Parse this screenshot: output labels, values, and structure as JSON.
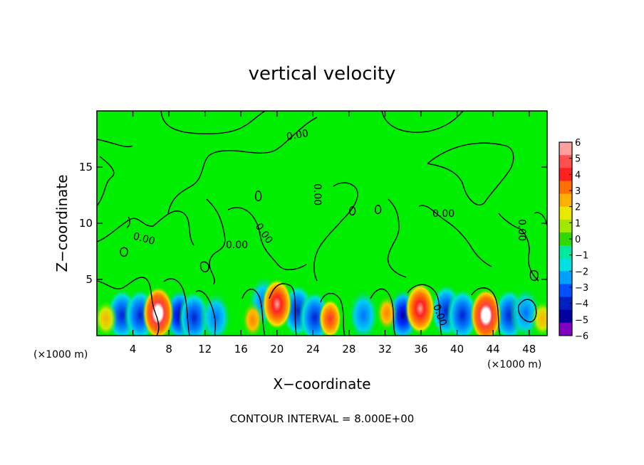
{
  "chart_data": {
    "type": "heatmap",
    "title": "vertical velocity",
    "xlabel": "X−coordinate",
    "ylabel": "Z−coordinate",
    "x_unit_left": "(×1000 m)",
    "x_unit_right": "(×1000 m)",
    "xlim": [
      0,
      50
    ],
    "ylim": [
      0,
      20
    ],
    "x_ticks": [
      4,
      8,
      12,
      16,
      20,
      24,
      28,
      32,
      36,
      40,
      44,
      48
    ],
    "y_ticks": [
      5,
      10,
      15
    ],
    "colorbar": {
      "ticks": [
        6,
        5,
        4,
        3,
        2,
        1,
        0,
        -1,
        -2,
        -3,
        -4,
        -5,
        -6
      ],
      "tick_labels": [
        "6",
        "5",
        "4",
        "3",
        "2",
        "1",
        "0",
        "−1",
        "−2",
        "−3",
        "−4",
        "−5",
        "−6"
      ],
      "colors": [
        "#ffa0a0",
        "#ff5050",
        "#ff2020",
        "#ff7000",
        "#ffb000",
        "#e8e800",
        "#a0e800",
        "#30d800",
        "#00e8a0",
        "#00e0e0",
        "#00a0ff",
        "#0050ff",
        "#0020c0",
        "#0000a0",
        "#8000c0"
      ]
    },
    "contour_label": "0.00",
    "footer": "CONTOUR INTERVAL = 8.000E+00",
    "updraft_cores": [
      {
        "x": 6.8,
        "z": 2.0,
        "peak": 6
      },
      {
        "x": 20.0,
        "z": 2.8,
        "peak": 5
      },
      {
        "x": 25.9,
        "z": 1.5,
        "peak": 4
      },
      {
        "x": 35.9,
        "z": 2.4,
        "peak": 5
      },
      {
        "x": 43.2,
        "z": 1.8,
        "peak": 6
      },
      {
        "x": 17.3,
        "z": 1.4,
        "peak": 3
      },
      {
        "x": 32.2,
        "z": 2.0,
        "peak": 3
      },
      {
        "x": 1.0,
        "z": 1.5,
        "peak": 2
      },
      {
        "x": 49.5,
        "z": 1.5,
        "peak": 2
      }
    ],
    "downdraft_cores": [
      {
        "x": 2.8,
        "z": 1.8,
        "peak": -4
      },
      {
        "x": 4.8,
        "z": 1.8,
        "peak": -4
      },
      {
        "x": 9.2,
        "z": 1.8,
        "peak": -5
      },
      {
        "x": 10.8,
        "z": 1.6,
        "peak": -4
      },
      {
        "x": 13.2,
        "z": 1.6,
        "peak": -3
      },
      {
        "x": 18.5,
        "z": 3.0,
        "peak": -3
      },
      {
        "x": 22.3,
        "z": 2.2,
        "peak": -4
      },
      {
        "x": 24.2,
        "z": 1.6,
        "peak": -4
      },
      {
        "x": 29.6,
        "z": 1.8,
        "peak": -3
      },
      {
        "x": 34.0,
        "z": 1.8,
        "peak": -5
      },
      {
        "x": 38.8,
        "z": 2.2,
        "peak": -4
      },
      {
        "x": 40.6,
        "z": 1.8,
        "peak": -4
      },
      {
        "x": 45.8,
        "z": 1.8,
        "peak": -4
      },
      {
        "x": 47.6,
        "z": 2.0,
        "peak": -3
      }
    ]
  }
}
